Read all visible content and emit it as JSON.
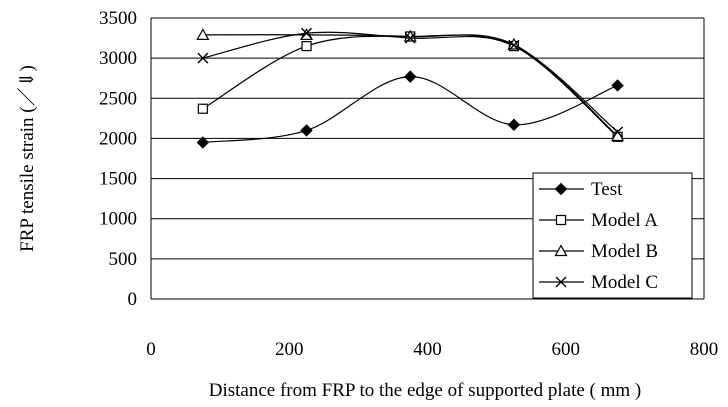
{
  "chart_data": {
    "type": "line",
    "xlabel": "Distance from FRP to the edge of supported plate ( mm )",
    "ylabel": "FRP tensile strain (／⇓)",
    "xlim": [
      0,
      800
    ],
    "ylim": [
      0,
      3500
    ],
    "x_ticks": [
      0,
      200,
      400,
      600,
      800
    ],
    "y_ticks": [
      0,
      500,
      1000,
      1500,
      2000,
      2500,
      3000,
      3500
    ],
    "grid": {
      "horizontal": true,
      "vertical": false
    },
    "legend_position": "bottom-right",
    "x": [
      75,
      225,
      375,
      525,
      675
    ],
    "series": [
      {
        "name": "Test",
        "marker": "filled-diamond",
        "values": [
          1950,
          2100,
          2770,
          2170,
          2660
        ]
      },
      {
        "name": "Model A",
        "marker": "open-square",
        "values": [
          2370,
          3150,
          3270,
          3150,
          2020
        ]
      },
      {
        "name": "Model B",
        "marker": "open-triangle",
        "values": [
          3290,
          3290,
          3270,
          3170,
          2030
        ]
      },
      {
        "name": "Model C",
        "marker": "x-cross",
        "values": [
          3000,
          3310,
          3250,
          3160,
          2080
        ]
      }
    ]
  }
}
